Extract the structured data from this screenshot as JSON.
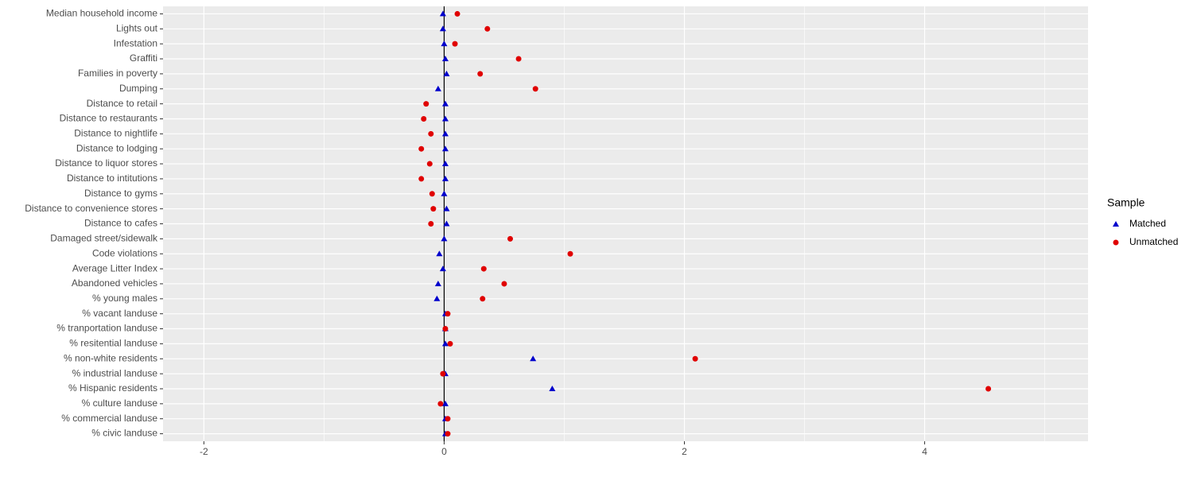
{
  "chart_data": {
    "type": "dot",
    "categories": [
      "Median household income",
      "Lights out",
      "Infestation",
      "Graffiti",
      "Families in poverty",
      "Dumping",
      "Distance to retail",
      "Distance to restaurants",
      "Distance to nightlife",
      "Distance to lodging",
      "Distance to liquor stores",
      "Distance to intitutions",
      "Distance to gyms",
      "Distance to convenience stores",
      "Distance to cafes",
      "Damaged street/sidewalk",
      "Code violations",
      "Average Litter Index",
      "Abandoned vehicles",
      "% young males",
      "% vacant landuse",
      "% tranportation landuse",
      "% resitential landuse",
      "% non-white residents",
      "% industrial landuse",
      "% Hispanic residents",
      "% culture landuse",
      "% commercial landuse",
      "% civic landuse"
    ],
    "series": [
      {
        "name": "Matched",
        "color": "#0000cc",
        "marker": "triangle",
        "values": [
          -0.01,
          -0.01,
          0,
          0.01,
          0.02,
          -0.05,
          0.01,
          0.01,
          0.01,
          0.01,
          0.01,
          0.01,
          0,
          0.02,
          0.02,
          0,
          -0.04,
          -0.01,
          -0.05,
          -0.06,
          0.01,
          0.01,
          0.01,
          0.74,
          0.01,
          0.9,
          0.01,
          0.01,
          0.01
        ]
      },
      {
        "name": "Unmatched",
        "color": "#e00000",
        "marker": "circle",
        "values": [
          0.11,
          0.36,
          0.09,
          0.62,
          0.3,
          0.76,
          -0.15,
          -0.17,
          -0.11,
          -0.19,
          -0.12,
          -0.19,
          -0.1,
          -0.09,
          -0.11,
          0.55,
          1.05,
          0.33,
          0.5,
          0.32,
          0.03,
          0.01,
          0.05,
          2.09,
          -0.01,
          4.53,
          -0.03,
          0.03,
          0.03
        ]
      }
    ],
    "xlim": [
      -2.34,
      5.36
    ],
    "xticks": [
      -2,
      0,
      2,
      4
    ],
    "vline": 0,
    "legend_title": "Sample",
    "legend": "right",
    "grid": true
  }
}
